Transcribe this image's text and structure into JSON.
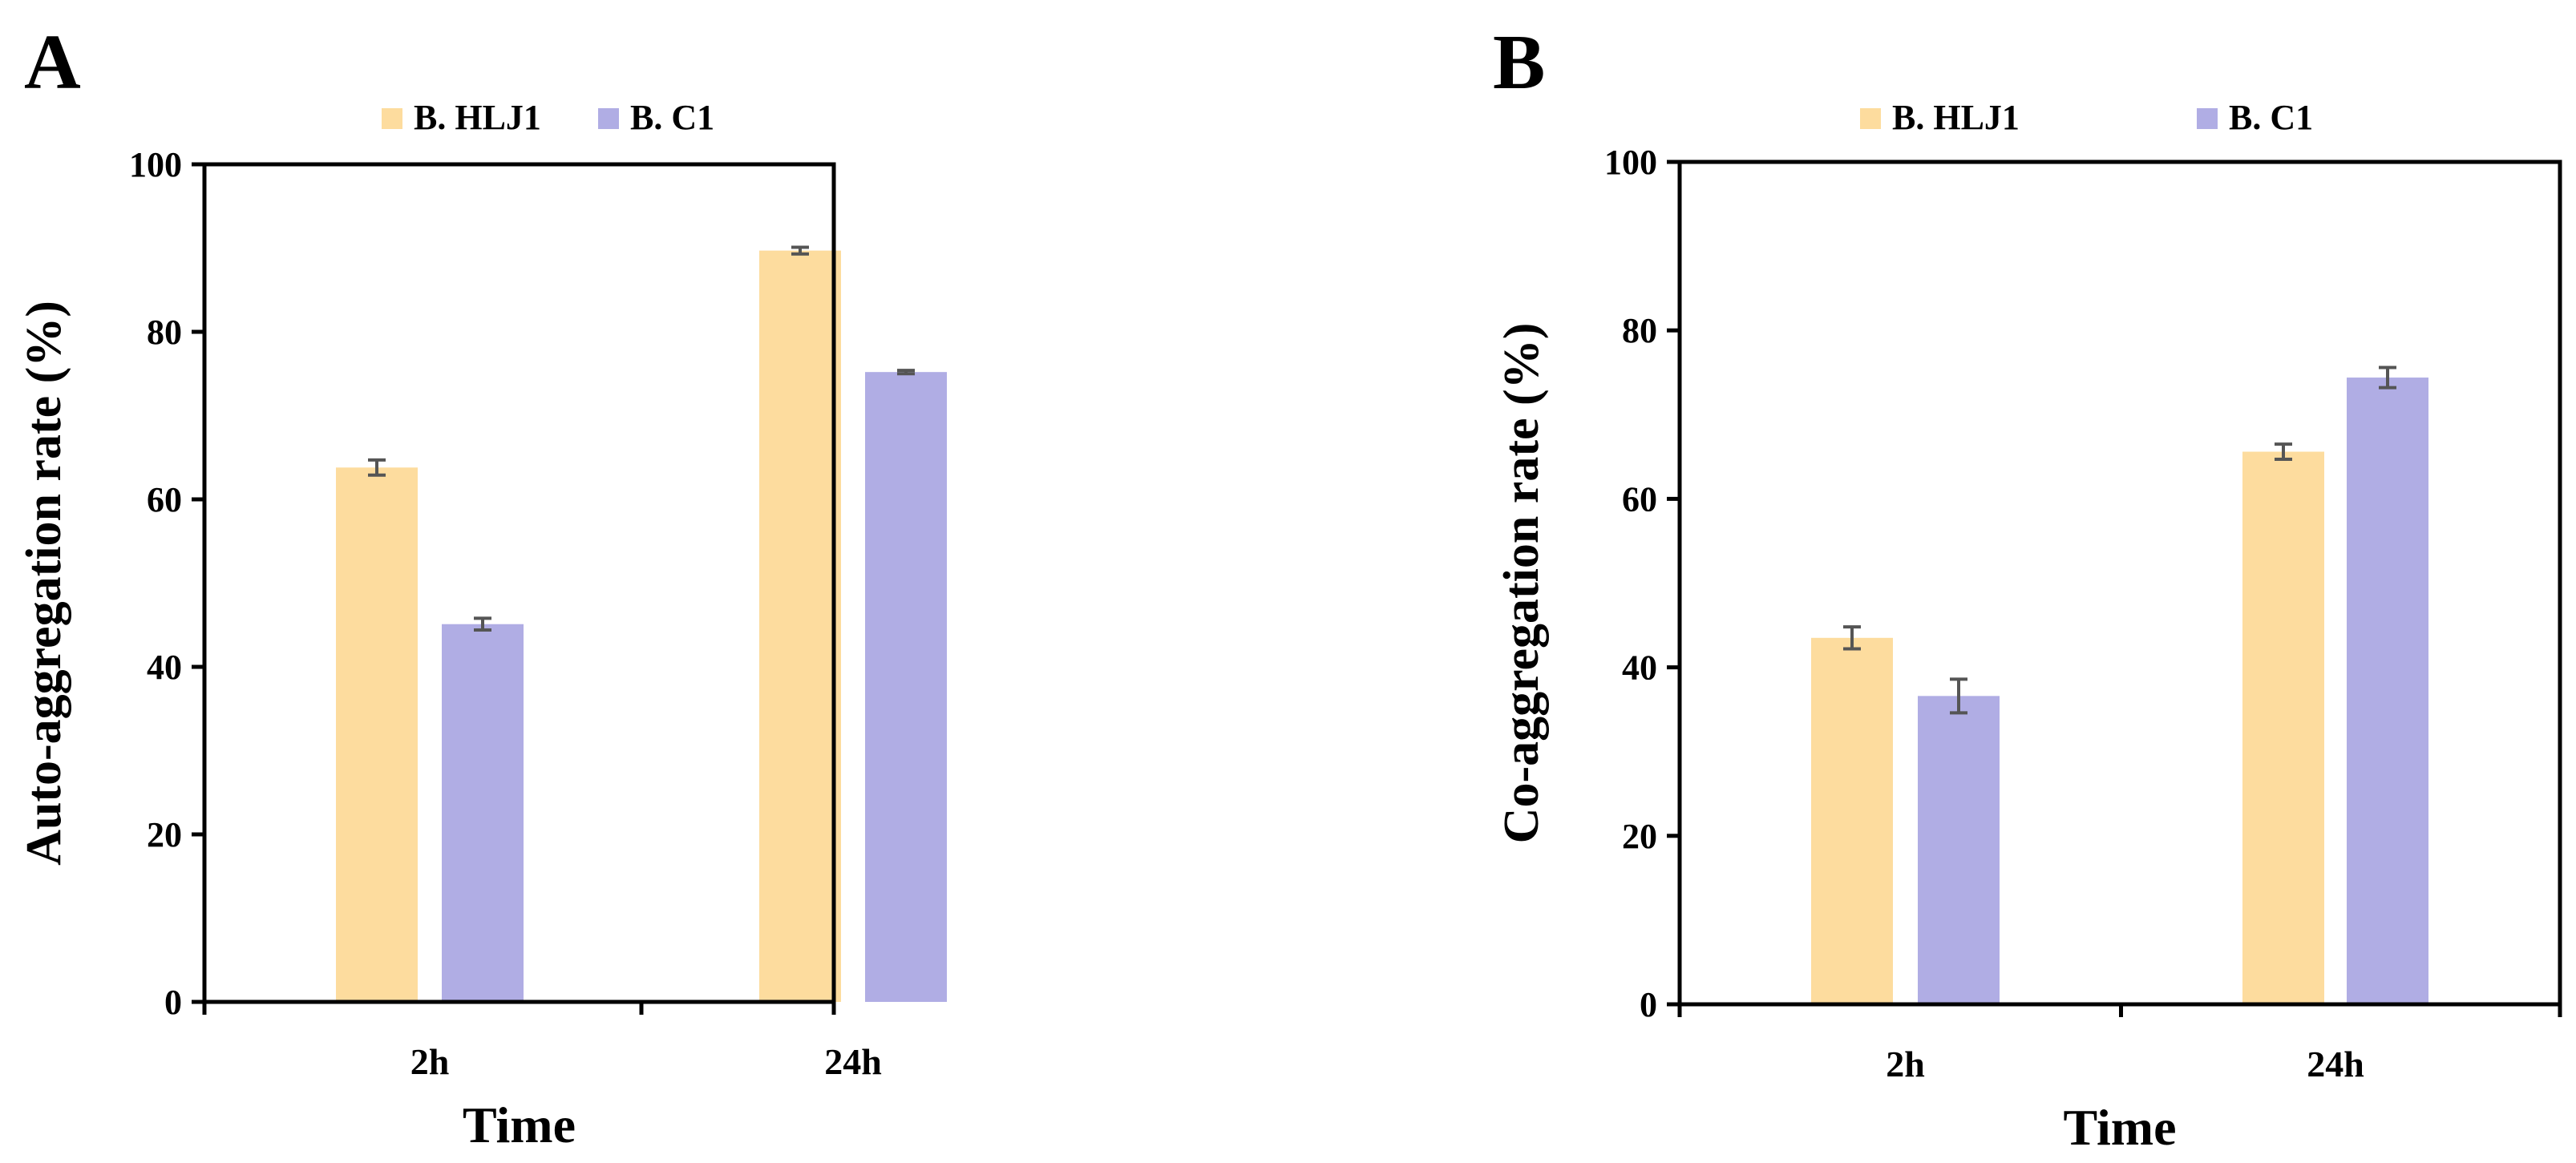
{
  "colors": {
    "series_1": "#fddc9e",
    "series_2": "#b0ade4",
    "axis": "#000000",
    "error_bar": "#555555"
  },
  "chart_data": [
    {
      "panel_label": "A",
      "type": "bar",
      "title": "",
      "xlabel": "Time",
      "ylabel": "Auto-aggregation  rate  (%)",
      "categories": [
        "2h",
        "24h"
      ],
      "ylim": [
        0,
        100
      ],
      "yticks": [
        0,
        20,
        40,
        60,
        80,
        100
      ],
      "ytick_labels": [
        "0",
        "20",
        "40",
        "60",
        "80",
        "100"
      ],
      "grid": false,
      "legend_position": "top",
      "series": [
        {
          "name": "B. HLJ1",
          "values": [
            63.8,
            89.7
          ],
          "errors": [
            0.9,
            0.4
          ]
        },
        {
          "name": "B. C1",
          "values": [
            45.1,
            75.2
          ],
          "errors": [
            0.7,
            0.2
          ]
        }
      ]
    },
    {
      "panel_label": "B",
      "type": "bar",
      "title": "",
      "xlabel": "Time",
      "ylabel": "Co-aggregation  rate  (%)",
      "categories": [
        "2h",
        "24h"
      ],
      "ylim": [
        0,
        100
      ],
      "yticks": [
        0,
        20,
        40,
        60,
        80,
        100
      ],
      "ytick_labels": [
        "0",
        "20",
        "40",
        "60",
        "80",
        "100"
      ],
      "grid": false,
      "legend_position": "top",
      "series": [
        {
          "name": "B. HLJ1",
          "values": [
            43.5,
            65.6
          ],
          "errors": [
            1.3,
            0.9
          ]
        },
        {
          "name": "B. C1",
          "values": [
            36.6,
            74.4
          ],
          "errors": [
            2.0,
            1.2
          ]
        }
      ]
    }
  ]
}
